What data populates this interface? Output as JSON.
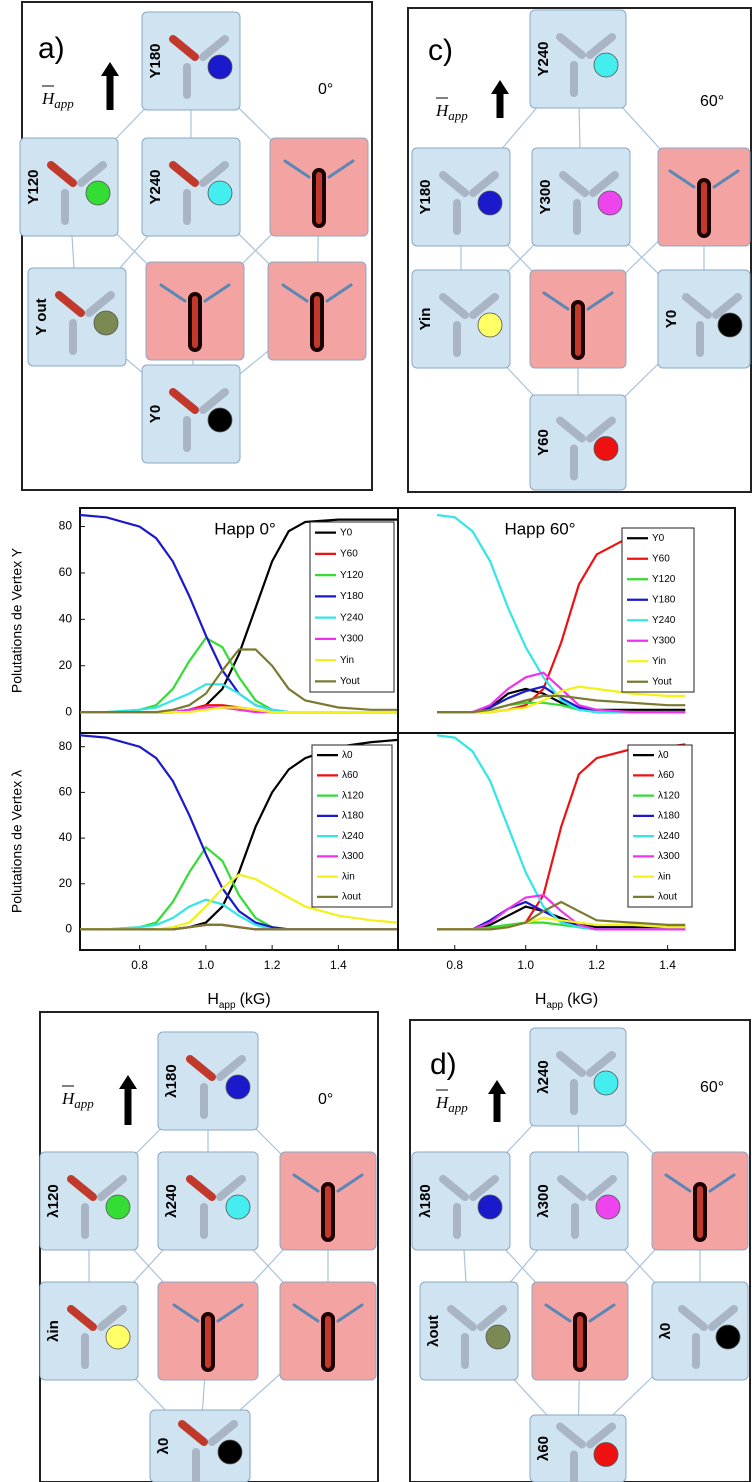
{
  "chart_data": [
    {
      "type": "line",
      "title": "Happ 0°",
      "ylabel": "Polutations de Vertex Y",
      "x": [
        0.62,
        0.7,
        0.8,
        0.85,
        0.9,
        0.95,
        1.0,
        1.05,
        1.1,
        1.15,
        1.2,
        1.25,
        1.3,
        1.4,
        1.5,
        1.58
      ],
      "xlim": [
        0.62,
        1.58
      ],
      "ylim": [
        -9,
        88
      ],
      "yticks": [
        0,
        20,
        40,
        60,
        80
      ],
      "series": [
        {
          "name": "Y0",
          "color": "#000000",
          "values": [
            0,
            0,
            0,
            0,
            0,
            1,
            3,
            10,
            25,
            45,
            65,
            78,
            82,
            83,
            83,
            83
          ]
        },
        {
          "name": "Y60",
          "color": "#ee1111",
          "values": [
            0,
            0,
            0,
            0,
            0,
            1,
            3,
            3,
            2,
            1,
            0,
            0,
            0,
            0,
            0,
            0
          ]
        },
        {
          "name": "Y120",
          "color": "#33dd33",
          "values": [
            0,
            0,
            1,
            3,
            10,
            22,
            32,
            28,
            15,
            5,
            1,
            0,
            0,
            0,
            0,
            0
          ]
        },
        {
          "name": "Y180",
          "color": "#1a1acc",
          "values": [
            85,
            84,
            80,
            75,
            65,
            50,
            33,
            18,
            8,
            3,
            1,
            0,
            0,
            0,
            0,
            0
          ]
        },
        {
          "name": "Y240",
          "color": "#33e6e6",
          "values": [
            0,
            0,
            1,
            2,
            5,
            8,
            12,
            12,
            8,
            3,
            1,
            0,
            0,
            0,
            0,
            0
          ]
        },
        {
          "name": "Y300",
          "color": "#ee33ee",
          "values": [
            0,
            0,
            0,
            0,
            0,
            1,
            2,
            2,
            1,
            0,
            0,
            0,
            0,
            0,
            0,
            0
          ]
        },
        {
          "name": "Yin",
          "color": "#f2f21a",
          "values": [
            0,
            0,
            0,
            0,
            0,
            0,
            1,
            2,
            2,
            1,
            0,
            0,
            0,
            0,
            0,
            0
          ]
        },
        {
          "name": "Yout",
          "color": "#7a7a30",
          "values": [
            0,
            0,
            0,
            0,
            1,
            3,
            8,
            18,
            27,
            27,
            20,
            10,
            5,
            2,
            1,
            1
          ]
        }
      ]
    },
    {
      "type": "line",
      "title": "Happ 60°",
      "x": [
        0.75,
        0.8,
        0.85,
        0.9,
        0.95,
        1.0,
        1.05,
        1.1,
        1.15,
        1.2,
        1.3,
        1.4,
        1.45
      ],
      "xlim": [
        0.64,
        1.59
      ],
      "ylim": [
        -9,
        88
      ],
      "series": [
        {
          "name": "Y0",
          "color": "#000000",
          "values": [
            0,
            0,
            0,
            2,
            8,
            10,
            8,
            4,
            2,
            1,
            1,
            1,
            1
          ]
        },
        {
          "name": "Y60",
          "color": "#ee1111",
          "values": [
            0,
            0,
            0,
            0,
            1,
            3,
            10,
            30,
            55,
            68,
            76,
            78,
            78
          ]
        },
        {
          "name": "Y120",
          "color": "#33dd33",
          "values": [
            0,
            0,
            0,
            1,
            3,
            4,
            4,
            3,
            1,
            0,
            0,
            0,
            0
          ]
        },
        {
          "name": "Y180",
          "color": "#1a1acc",
          "values": [
            0,
            0,
            0,
            2,
            6,
            9,
            11,
            6,
            2,
            0,
            0,
            0,
            0
          ]
        },
        {
          "name": "Y240",
          "color": "#33e6e6",
          "values": [
            85,
            84,
            78,
            65,
            45,
            28,
            15,
            5,
            1,
            0,
            0,
            0,
            0
          ]
        },
        {
          "name": "Y300",
          "color": "#ee33ee",
          "values": [
            0,
            0,
            0,
            3,
            10,
            15,
            17,
            10,
            3,
            1,
            0,
            0,
            0
          ]
        },
        {
          "name": "Yin",
          "color": "#f2f21a",
          "values": [
            0,
            0,
            0,
            0,
            1,
            2,
            5,
            9,
            11,
            10,
            8,
            7,
            7
          ]
        },
        {
          "name": "Yout",
          "color": "#7a7a30",
          "values": [
            0,
            0,
            0,
            1,
            3,
            5,
            7,
            7,
            6,
            5,
            4,
            3,
            3
          ]
        }
      ]
    },
    {
      "type": "line",
      "ylabel": "Polutations de Vertex λ",
      "xlabel": "H",
      "xlabel_sub": "app",
      "xlabel_unit": "(kG)",
      "x": [
        0.62,
        0.7,
        0.8,
        0.85,
        0.9,
        0.95,
        1.0,
        1.05,
        1.1,
        1.15,
        1.2,
        1.25,
        1.3,
        1.4,
        1.5,
        1.58
      ],
      "xlim": [
        0.62,
        1.58
      ],
      "ylim": [
        -9,
        86
      ],
      "yticks": [
        0,
        20,
        40,
        60,
        80
      ],
      "xticks": [
        0.8,
        {
          "value": 1,
          "label": "1.0"
        },
        1.2,
        1.4
      ],
      "series": [
        {
          "name": "λ0",
          "color": "#000000",
          "values": [
            0,
            0,
            0,
            0,
            0,
            1,
            3,
            10,
            25,
            45,
            60,
            70,
            75,
            80,
            82,
            83
          ]
        },
        {
          "name": "λ60",
          "color": "#ee1111",
          "values": [
            0,
            0,
            0,
            0,
            0,
            1,
            2,
            2,
            1,
            0,
            0,
            0,
            0,
            0,
            0,
            0
          ]
        },
        {
          "name": "λ120",
          "color": "#33dd33",
          "values": [
            0,
            0,
            1,
            3,
            12,
            25,
            36,
            30,
            15,
            5,
            1,
            0,
            0,
            0,
            0,
            0
          ]
        },
        {
          "name": "λ180",
          "color": "#1a1acc",
          "values": [
            85,
            84,
            80,
            75,
            65,
            50,
            33,
            18,
            8,
            3,
            1,
            0,
            0,
            0,
            0,
            0
          ]
        },
        {
          "name": "λ240",
          "color": "#33e6e6",
          "values": [
            0,
            0,
            1,
            2,
            5,
            10,
            13,
            11,
            6,
            2,
            0,
            0,
            0,
            0,
            0,
            0
          ]
        },
        {
          "name": "λ300",
          "color": "#ee33ee",
          "values": [
            0,
            0,
            0,
            0,
            0,
            1,
            2,
            2,
            1,
            0,
            0,
            0,
            0,
            0,
            0,
            0
          ]
        },
        {
          "name": "λin",
          "color": "#f2f21a",
          "values": [
            0,
            0,
            0,
            0,
            1,
            3,
            10,
            18,
            24,
            22,
            18,
            14,
            10,
            6,
            4,
            3
          ]
        },
        {
          "name": "λout",
          "color": "#7a7a30",
          "values": [
            0,
            0,
            0,
            0,
            0,
            1,
            2,
            2,
            1,
            0,
            0,
            0,
            0,
            0,
            0,
            0
          ]
        }
      ]
    },
    {
      "type": "line",
      "xlabel": "H",
      "xlabel_sub": "app",
      "xlabel_unit": "(kG)",
      "x": [
        0.75,
        0.8,
        0.85,
        0.9,
        0.95,
        1.0,
        1.05,
        1.1,
        1.15,
        1.2,
        1.3,
        1.4,
        1.45
      ],
      "xlim": [
        0.64,
        1.59
      ],
      "ylim": [
        -9,
        86
      ],
      "xticks": [
        0.8,
        {
          "value": 1,
          "label": "1.0"
        },
        1.2,
        1.4
      ],
      "series": [
        {
          "name": "λ0",
          "color": "#000000",
          "values": [
            0,
            0,
            0,
            2,
            6,
            10,
            8,
            5,
            2,
            1,
            1,
            1,
            1
          ]
        },
        {
          "name": "λ60",
          "color": "#ee1111",
          "values": [
            0,
            0,
            0,
            0,
            1,
            3,
            15,
            45,
            68,
            75,
            79,
            80,
            81
          ]
        },
        {
          "name": "λ120",
          "color": "#33dd33",
          "values": [
            0,
            0,
            0,
            1,
            2,
            3,
            3,
            2,
            1,
            0,
            0,
            0,
            0
          ]
        },
        {
          "name": "λ180",
          "color": "#1a1acc",
          "values": [
            0,
            0,
            0,
            4,
            9,
            12,
            8,
            4,
            1,
            0,
            0,
            0,
            0
          ]
        },
        {
          "name": "λ240",
          "color": "#33e6e6",
          "values": [
            85,
            84,
            78,
            65,
            45,
            25,
            10,
            3,
            1,
            0,
            0,
            0,
            0
          ]
        },
        {
          "name": "λ300",
          "color": "#ee33ee",
          "values": [
            0,
            0,
            0,
            3,
            9,
            14,
            15,
            8,
            2,
            0,
            0,
            0,
            0
          ]
        },
        {
          "name": "λin",
          "color": "#f2f21a",
          "values": [
            0,
            0,
            0,
            0,
            1,
            3,
            5,
            4,
            3,
            2,
            2,
            1,
            1
          ]
        },
        {
          "name": "λout",
          "color": "#7a7a30",
          "values": [
            0,
            0,
            0,
            0,
            1,
            3,
            8,
            12,
            8,
            4,
            3,
            2,
            2
          ]
        }
      ]
    }
  ],
  "diagrams": [
    {
      "panel_label": "a)",
      "angle": "0°",
      "field": {
        "symbol": "H",
        "sub": "app"
      },
      "nodes": [
        {
          "label": "Y180",
          "dot": "#1a1acc"
        },
        {
          "label": "Y120",
          "dot": "#33dd33"
        },
        {
          "label": "Y240",
          "dot": "#44eeee"
        },
        {
          "label": "Y out",
          "dot": "#7a8a52"
        },
        {
          "label": "Y0",
          "dot": "#000000"
        }
      ]
    },
    {
      "panel_label": "c)",
      "angle": "60°",
      "field": {
        "symbol": "H",
        "sub": "app"
      },
      "nodes": [
        {
          "label": "Y240",
          "dot": "#44eeee"
        },
        {
          "label": "Y180",
          "dot": "#1a1acc"
        },
        {
          "label": "Y300",
          "dot": "#ee44ee"
        },
        {
          "label": "Yin",
          "dot": "#ffff66"
        },
        {
          "label": "Y0",
          "dot": "#000000"
        },
        {
          "label": "Y60",
          "dot": "#ee1111"
        }
      ]
    },
    {
      "angle": "0°",
      "field": {
        "symbol": "H",
        "sub": "app"
      },
      "nodes": [
        {
          "label": "λ180",
          "dot": "#1a1acc"
        },
        {
          "label": "λ120",
          "dot": "#33dd33"
        },
        {
          "label": "λ240",
          "dot": "#44eeee"
        },
        {
          "label": "λin",
          "dot": "#ffff66"
        },
        {
          "label": "λ0",
          "dot": "#000000"
        }
      ]
    },
    {
      "panel_label": "d)",
      "angle": "60°",
      "field": {
        "symbol": "H",
        "sub": "app"
      },
      "nodes": [
        {
          "label": "λ240",
          "dot": "#44eeee"
        },
        {
          "label": "λ180",
          "dot": "#1a1acc"
        },
        {
          "label": "λ300",
          "dot": "#ee44ee"
        },
        {
          "label": "λout",
          "dot": "#7a8a52"
        },
        {
          "label": "λ0",
          "dot": "#000000"
        },
        {
          "label": "λ60",
          "dot": "#ee1111"
        }
      ]
    }
  ]
}
